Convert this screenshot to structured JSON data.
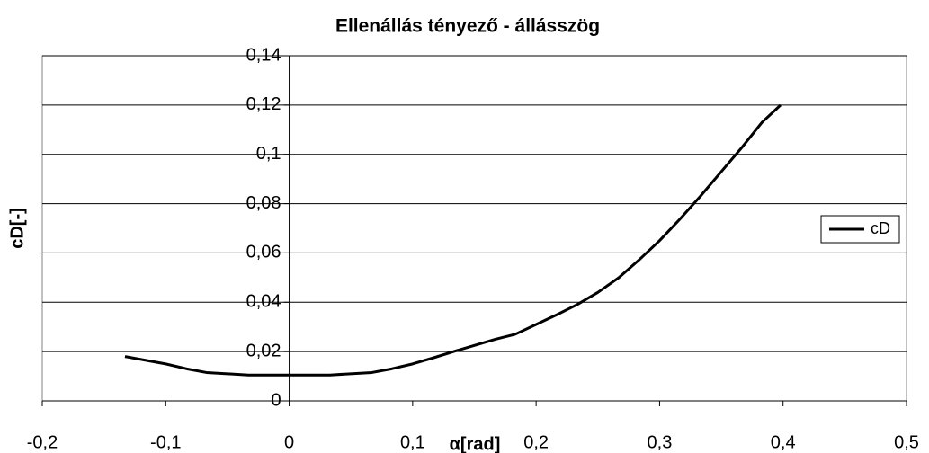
{
  "chart_data": {
    "type": "line",
    "title": "Ellenállás tényező - állásszög",
    "x_label": "α[rad]",
    "y_label": "cD[-]",
    "x": [
      -0.133,
      -0.1,
      -0.083,
      -0.067,
      -0.033,
      0,
      0.033,
      0.067,
      0.083,
      0.1,
      0.117,
      0.133,
      0.15,
      0.167,
      0.183,
      0.2,
      0.217,
      0.233,
      0.25,
      0.267,
      0.283,
      0.3,
      0.317,
      0.333,
      0.35,
      0.367,
      0.383,
      0.398
    ],
    "series": [
      {
        "name": "cD",
        "color": "#000000",
        "values": [
          0.018,
          0.015,
          0.013,
          0.0115,
          0.0105,
          0.0105,
          0.0105,
          0.0115,
          0.013,
          0.015,
          0.0175,
          0.02,
          0.0225,
          0.025,
          0.027,
          0.031,
          0.035,
          0.039,
          0.044,
          0.05,
          0.057,
          0.065,
          0.074,
          0.083,
          0.093,
          0.103,
          0.113,
          0.12
        ]
      }
    ],
    "xlim": [
      -0.2,
      0.5
    ],
    "xticks": [
      {
        "value": -0.2,
        "label": "-0,2"
      },
      {
        "value": -0.1,
        "label": "-0,1"
      },
      0,
      {
        "value": 0.1,
        "label": "0,1"
      },
      {
        "value": 0.2,
        "label": "0,2"
      },
      {
        "value": 0.3,
        "label": "0,3"
      },
      {
        "value": 0.4,
        "label": "0,4"
      },
      {
        "value": 0.5,
        "label": "0,5"
      }
    ],
    "ylim": [
      0,
      0.14
    ],
    "yticks": [
      0,
      {
        "value": 0.02,
        "label": "0,02"
      },
      {
        "value": 0.04,
        "label": "0,04"
      },
      {
        "value": 0.06,
        "label": "0,06"
      },
      {
        "value": 0.08,
        "label": "0,08"
      },
      {
        "value": 0.1,
        "label": "0,1"
      },
      {
        "value": 0.12,
        "label": "0,12"
      },
      {
        "value": 0.14,
        "label": "0,14"
      }
    ],
    "grid": true,
    "legend": "right"
  }
}
